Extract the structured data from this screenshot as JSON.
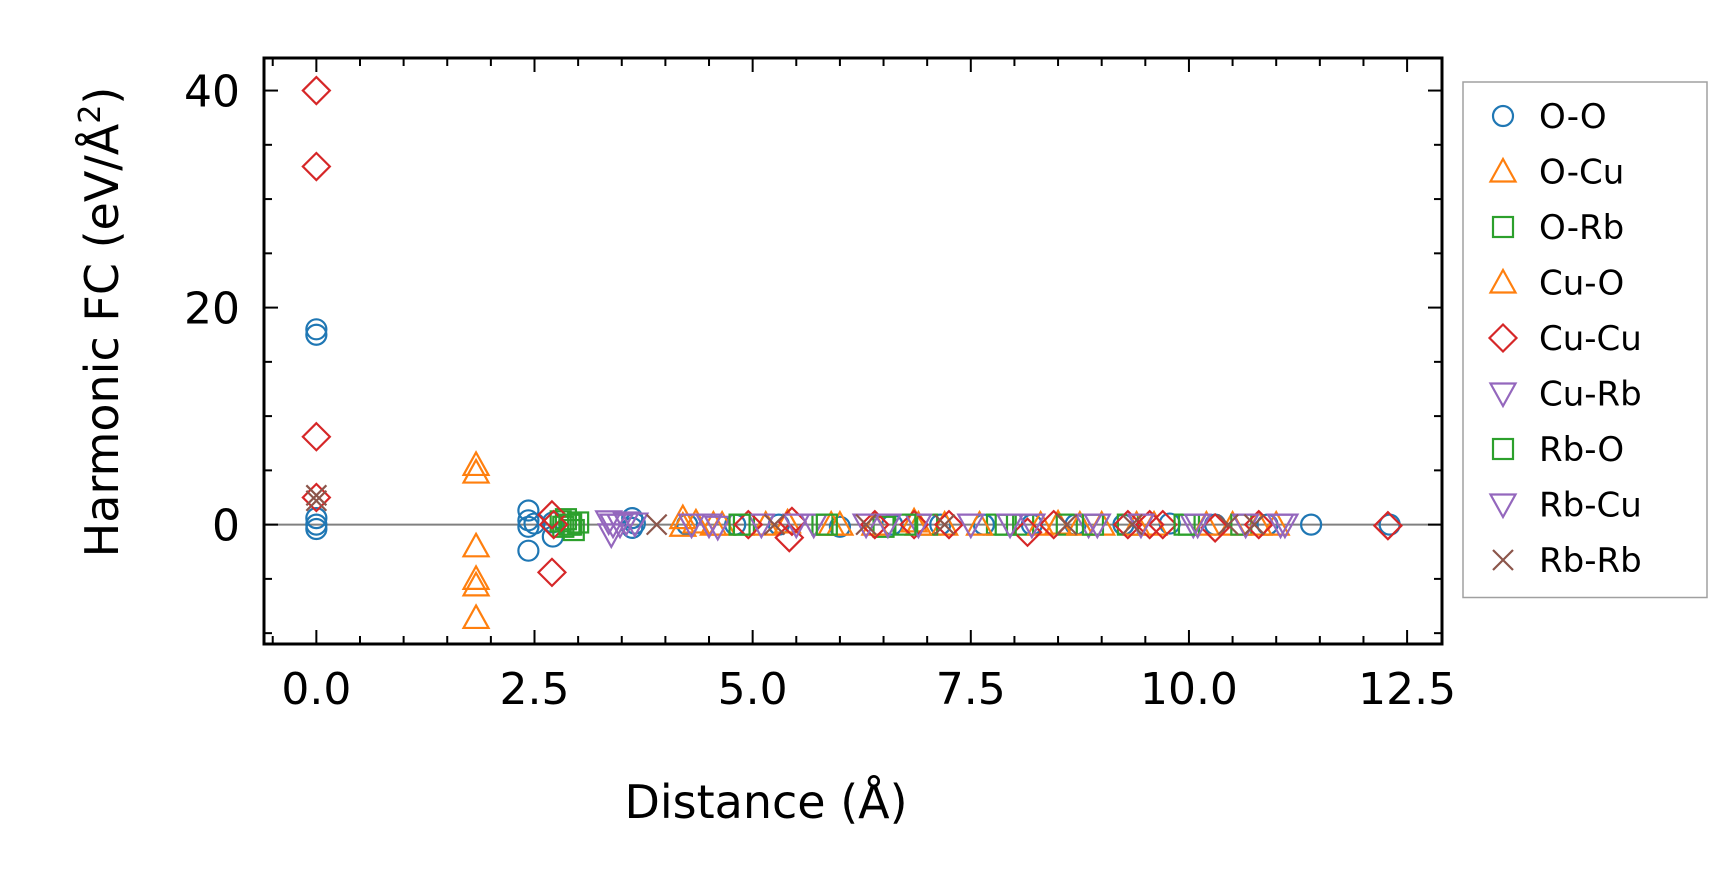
{
  "chart_data": {
    "type": "scatter",
    "xlabel": "Distance (Å)",
    "ylabel_main": "Harmonic FC (eV/Å",
    "ylabel_sup": "2",
    "ylabel_close": ")",
    "xlim": [
      -0.6,
      12.9
    ],
    "ylim": [
      -11,
      43
    ],
    "xticks": [
      0.0,
      2.5,
      5.0,
      7.5,
      10.0,
      12.5
    ],
    "xtick_labels": [
      "0.0",
      "2.5",
      "5.0",
      "7.5",
      "10.0",
      "12.5"
    ],
    "yticks": [
      0,
      20,
      40
    ],
    "ytick_labels": [
      "0",
      "20",
      "40"
    ],
    "reference_line_y": 0,
    "legend_position": "right",
    "grid": false,
    "series": [
      {
        "name": "O-O",
        "marker": "circle",
        "color": "#1f77b4",
        "points": [
          [
            0,
            0
          ],
          [
            0,
            0.6
          ],
          [
            0,
            -0.4
          ],
          [
            0,
            17.5
          ],
          [
            0,
            18
          ],
          [
            2.43,
            1.3
          ],
          [
            2.43,
            -0.2
          ],
          [
            2.43,
            -2.4
          ],
          [
            2.43,
            0.4
          ],
          [
            2.5,
            0.1
          ],
          [
            2.71,
            -1.1
          ],
          [
            2.71,
            0.2
          ],
          [
            3.62,
            0.6
          ],
          [
            3.62,
            -0.3
          ],
          [
            3.65,
            0.1
          ],
          [
            4.25,
            0
          ],
          [
            4.8,
            0
          ],
          [
            5.3,
            0
          ],
          [
            6.0,
            -0.2
          ],
          [
            6.6,
            0
          ],
          [
            7.15,
            0
          ],
          [
            7.65,
            0
          ],
          [
            8.2,
            0
          ],
          [
            8.7,
            0
          ],
          [
            9.25,
            0
          ],
          [
            9.78,
            0.1
          ],
          [
            10.3,
            0
          ],
          [
            10.9,
            0
          ],
          [
            11.4,
            0
          ],
          [
            12.3,
            0
          ]
        ]
      },
      {
        "name": "O-Cu",
        "marker": "triangle-up",
        "color": "#ff7f0e",
        "points": [
          [
            1.83,
            4.8
          ],
          [
            1.83,
            5.5
          ],
          [
            1.83,
            -2
          ],
          [
            1.83,
            -5
          ],
          [
            1.83,
            -5.6
          ],
          [
            1.83,
            -8.6
          ],
          [
            4.2,
            0.6
          ],
          [
            4.2,
            -0.1
          ],
          [
            4.65,
            0
          ],
          [
            5.4,
            0.2
          ],
          [
            6.0,
            0
          ],
          [
            6.85,
            0.3
          ],
          [
            7.2,
            0
          ],
          [
            8.5,
            0.1
          ],
          [
            9.0,
            0
          ],
          [
            9.6,
            0
          ],
          [
            10.5,
            0
          ],
          [
            11.0,
            0
          ]
        ]
      },
      {
        "name": "O-Rb",
        "marker": "square",
        "color": "#2ca02c",
        "points": [
          [
            2.8,
            0.3
          ],
          [
            2.83,
            -0.2
          ],
          [
            2.86,
            0.5
          ],
          [
            2.92,
            0
          ],
          [
            2.95,
            -0.5
          ],
          [
            3.0,
            0.2
          ],
          [
            4.9,
            0
          ],
          [
            5.8,
            0
          ],
          [
            6.5,
            -0.2
          ],
          [
            7.0,
            0
          ],
          [
            7.8,
            0
          ],
          [
            8.1,
            0
          ],
          [
            8.6,
            0
          ],
          [
            9.3,
            0
          ],
          [
            10.0,
            0
          ],
          [
            10.6,
            0
          ]
        ]
      },
      {
        "name": "Cu-O",
        "marker": "triangle-up",
        "color": "#ff7f0e",
        "points": [
          [
            4.35,
            0.2
          ],
          [
            4.55,
            0
          ],
          [
            5.15,
            0
          ],
          [
            5.9,
            0
          ],
          [
            6.4,
            0
          ],
          [
            6.9,
            0
          ],
          [
            7.6,
            0
          ],
          [
            8.3,
            0
          ],
          [
            8.75,
            0
          ],
          [
            9.4,
            0
          ],
          [
            10.2,
            0
          ],
          [
            10.8,
            0
          ]
        ]
      },
      {
        "name": "Cu-Cu",
        "marker": "diamond",
        "color": "#d62728",
        "points": [
          [
            0,
            40
          ],
          [
            0,
            33
          ],
          [
            0,
            8.1
          ],
          [
            0,
            2.5
          ],
          [
            2.7,
            0.9
          ],
          [
            2.7,
            -4.4
          ],
          [
            2.72,
            0
          ],
          [
            4.95,
            0
          ],
          [
            5.42,
            -1.2
          ],
          [
            5.45,
            0.3
          ],
          [
            6.4,
            0
          ],
          [
            6.85,
            0
          ],
          [
            7.25,
            0
          ],
          [
            8.15,
            -0.7
          ],
          [
            8.45,
            0
          ],
          [
            9.3,
            0
          ],
          [
            9.55,
            0
          ],
          [
            9.7,
            0
          ],
          [
            10.3,
            -0.3
          ],
          [
            10.8,
            0
          ],
          [
            12.28,
            -0.1
          ]
        ]
      },
      {
        "name": "Cu-Rb",
        "marker": "triangle-down",
        "color": "#9467bd",
        "points": [
          [
            3.35,
            0.3
          ],
          [
            3.38,
            -0.9
          ],
          [
            3.48,
            0
          ],
          [
            3.55,
            0.2
          ],
          [
            3.65,
            0.1
          ],
          [
            4.3,
            0
          ],
          [
            4.6,
            -0.2
          ],
          [
            5.1,
            0
          ],
          [
            5.7,
            0
          ],
          [
            6.3,
            0
          ],
          [
            6.9,
            0
          ],
          [
            7.5,
            0
          ],
          [
            8.2,
            0
          ],
          [
            8.85,
            0
          ],
          [
            9.45,
            0
          ],
          [
            10.05,
            0
          ],
          [
            10.65,
            0
          ],
          [
            11.1,
            0
          ]
        ]
      },
      {
        "name": "Rb-O",
        "marker": "square",
        "color": "#2ca02c",
        "points": [
          [
            2.9,
            0
          ],
          [
            4.85,
            0
          ],
          [
            5.85,
            0
          ],
          [
            6.75,
            0
          ],
          [
            7.9,
            0
          ],
          [
            8.9,
            0
          ],
          [
            9.95,
            0
          ]
        ]
      },
      {
        "name": "Rb-Cu",
        "marker": "triangle-down",
        "color": "#9467bd",
        "points": [
          [
            3.4,
            0
          ],
          [
            4.5,
            0
          ],
          [
            5.5,
            0
          ],
          [
            6.55,
            0
          ],
          [
            7.95,
            0
          ],
          [
            8.95,
            0
          ],
          [
            10.1,
            0
          ],
          [
            11.05,
            0
          ]
        ]
      },
      {
        "name": "Rb-Rb",
        "marker": "x",
        "color": "#8c564b",
        "points": [
          [
            0,
            2.7
          ],
          [
            0,
            2.2
          ],
          [
            3.9,
            0
          ],
          [
            5.25,
            0
          ],
          [
            6.3,
            0
          ],
          [
            7.2,
            0
          ],
          [
            8.6,
            0
          ],
          [
            9.35,
            0
          ],
          [
            10.45,
            0
          ],
          [
            10.75,
            0
          ]
        ]
      }
    ]
  }
}
